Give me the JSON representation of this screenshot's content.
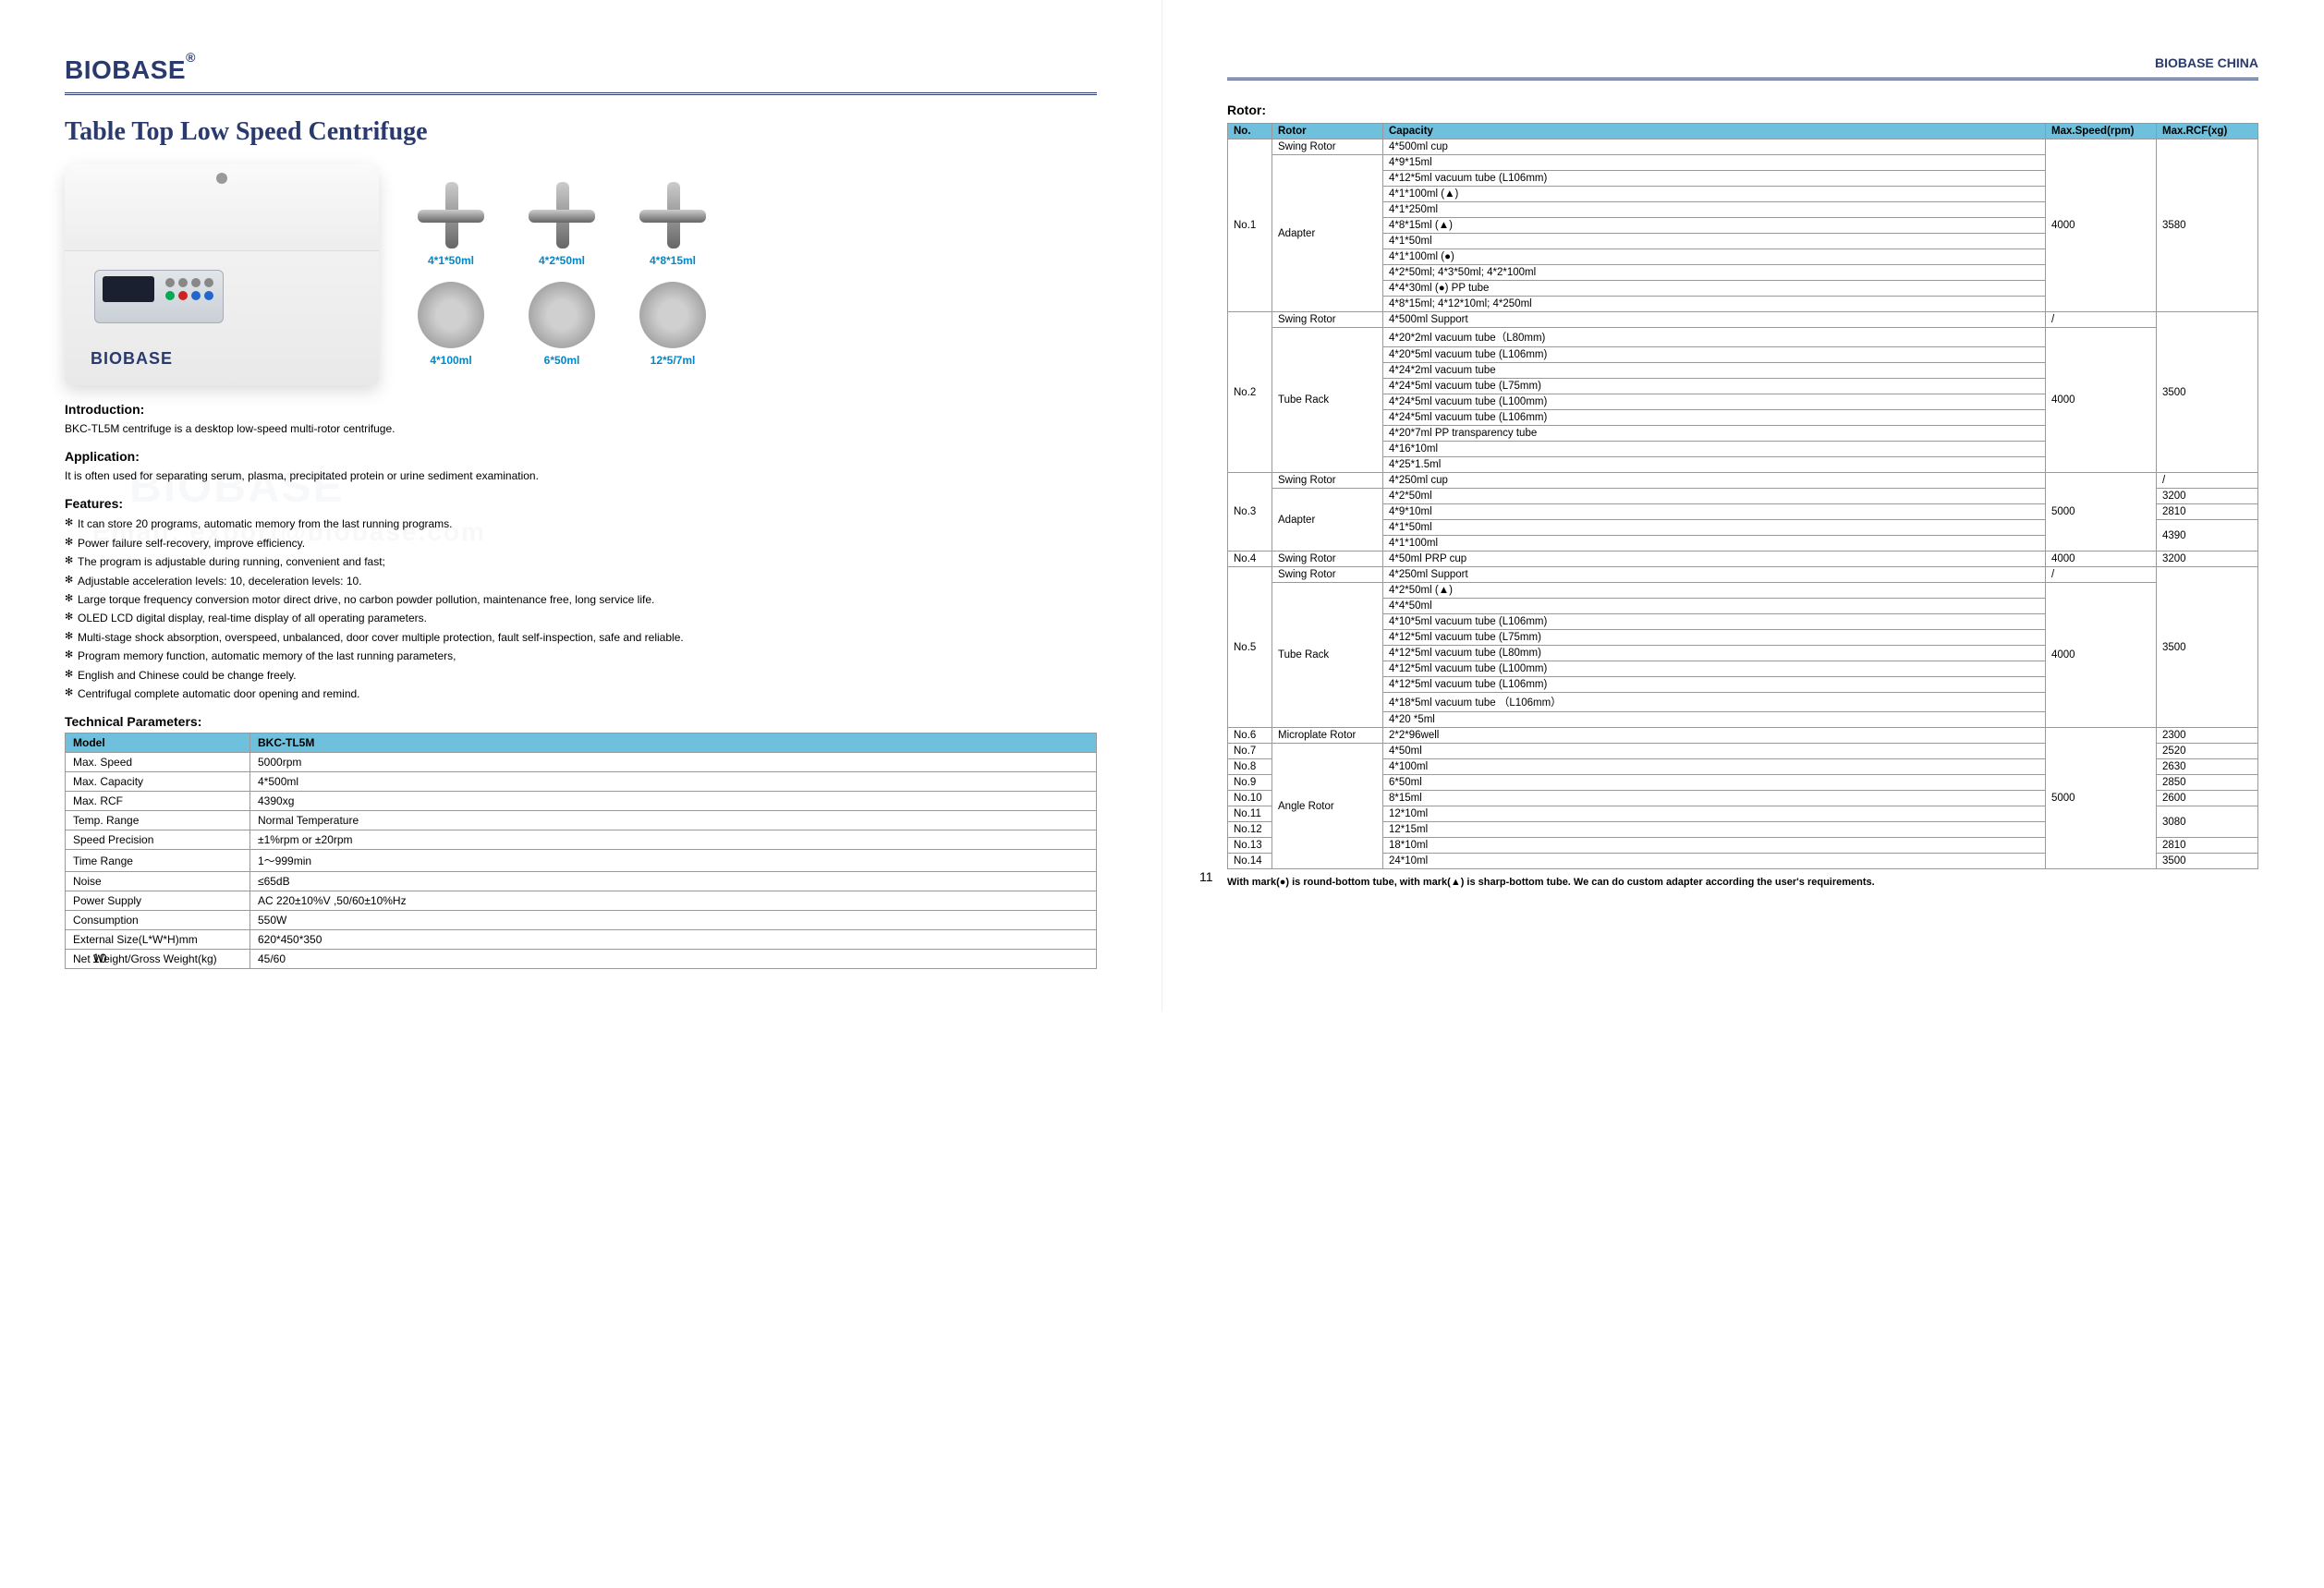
{
  "brand": {
    "logo": "BIOBASE",
    "reg": "®",
    "right_header": "BIOBASE CHINA"
  },
  "title": "Table Top Low Speed Centrifuge",
  "device_logo": "BIOBASE",
  "rotor_labels": [
    "4*1*50ml",
    "4*2*50ml",
    "4*8*15ml",
    "4*100ml",
    "6*50ml",
    "12*5/7ml"
  ],
  "intro": {
    "h": "Introduction:",
    "t": "BKC-TL5M centrifuge is a desktop low-speed multi-rotor centrifuge."
  },
  "app": {
    "h": "Application:",
    "t": "It is often used for separating serum, plasma, precipitated protein or urine sediment examination."
  },
  "features_h": "Features:",
  "features": [
    "It can store 20 programs, automatic memory from the last running programs.",
    "Power failure self-recovery, improve efficiency.",
    "The program is adjustable during running, convenient and fast;",
    "Adjustable acceleration levels: 10, deceleration levels: 10.",
    "Large torque frequency conversion motor direct drive, no carbon powder pollution, maintenance free, long service life.",
    "OLED LCD digital display, real-time display of all operating parameters.",
    "Multi-stage shock absorption, overspeed, unbalanced, door cover multiple protection, fault self-inspection, safe and reliable.",
    "Program memory function, automatic memory of the last running parameters,",
    "English and Chinese could be change freely.",
    "Centrifugal complete automatic door opening and remind."
  ],
  "tech_h": "Technical Parameters:",
  "tech_header": [
    "Model",
    "BKC-TL5M"
  ],
  "tech_rows": [
    [
      "Max. Speed",
      "5000rpm"
    ],
    [
      "Max. Capacity",
      "4*500ml"
    ],
    [
      "Max. RCF",
      "4390xg"
    ],
    [
      "Temp. Range",
      "Normal Temperature"
    ],
    [
      "Speed Precision",
      "±1%rpm or ±20rpm"
    ],
    [
      "Time Range",
      "1～999min"
    ],
    [
      "Noise",
      "≤65dB"
    ],
    [
      "Power Supply",
      "AC 220±10%V ,50/60±10%Hz"
    ],
    [
      "Consumption",
      "550W"
    ],
    [
      "External Size(L*W*H)mm",
      "620*450*350"
    ],
    [
      "Net Weight/Gross Weight(kg)",
      "45/60"
    ]
  ],
  "rotor_title": "Rotor:",
  "rotor_header": [
    "No.",
    "Rotor",
    "Capacity",
    "Max.Speed(rpm)",
    "Max.RCF(xg)"
  ],
  "rotor_rows": [
    {
      "no": "No.1",
      "no_rs": 11,
      "rotor": "Swing Rotor",
      "rotor_rs": 1,
      "cap": "4*500ml cup",
      "spd": "4000",
      "spd_rs": 11,
      "rcf": "3580",
      "rcf_rs": 11
    },
    {
      "rotor": "Adapter",
      "rotor_rs": 10,
      "cap": "4*9*15ml"
    },
    {
      "cap": "4*12*5ml vacuum tube (L106mm)"
    },
    {
      "cap": "4*1*100ml (▲)"
    },
    {
      "cap": "4*1*250ml"
    },
    {
      "cap": "4*8*15ml (▲)"
    },
    {
      "cap": "4*1*50ml"
    },
    {
      "cap": "4*1*100ml (●)"
    },
    {
      "cap": "4*2*50ml; 4*3*50ml; 4*2*100ml"
    },
    {
      "cap": "4*4*30ml (●) PP tube"
    },
    {
      "cap": "4*8*15ml; 4*12*10ml; 4*250ml"
    },
    {
      "no": "No.2",
      "no_rs": 10,
      "rotor": "Swing Rotor",
      "rotor_rs": 1,
      "cap": "4*500ml Support",
      "spd": "/",
      "spd_rs": 1,
      "rcf": "3500",
      "rcf_rs": 10
    },
    {
      "rotor": "Tube Rack",
      "rotor_rs": 9,
      "cap": "4*20*2ml vacuum tube（L80mm)",
      "spd": "4000",
      "spd_rs": 9
    },
    {
      "cap": "4*20*5ml vacuum tube (L106mm)"
    },
    {
      "cap": "4*24*2ml vacuum tube"
    },
    {
      "cap": "4*24*5ml vacuum tube (L75mm)"
    },
    {
      "cap": "4*24*5ml vacuum tube (L100mm)"
    },
    {
      "cap": "4*24*5ml vacuum tube (L106mm)"
    },
    {
      "cap": "4*20*7ml PP transparency tube"
    },
    {
      "cap": "4*16*10ml"
    },
    {
      "cap": "4*25*1.5ml"
    },
    {
      "no": "No.3",
      "no_rs": 5,
      "rotor": "Swing Rotor",
      "rotor_rs": 1,
      "cap": "4*250ml cup",
      "spd": "5000",
      "spd_rs": 5,
      "rcf": "/",
      "rcf_rs": 1
    },
    {
      "rotor": "Adapter",
      "rotor_rs": 4,
      "cap": "4*2*50ml",
      "rcf": "3200",
      "rcf_rs": 1
    },
    {
      "cap": "4*9*10ml",
      "rcf": "2810",
      "rcf_rs": 1
    },
    {
      "cap": "4*1*50ml",
      "rcf": "4390",
      "rcf_rs": 2
    },
    {
      "cap": "4*1*100ml"
    },
    {
      "no": "No.4",
      "no_rs": 1,
      "rotor": "Swing Rotor",
      "rotor_rs": 1,
      "cap": "4*50ml PRP cup",
      "spd": "4000",
      "spd_rs": 1,
      "rcf": "3200",
      "rcf_rs": 1
    },
    {
      "no": "No.5",
      "no_rs": 10,
      "rotor": "Swing Rotor",
      "rotor_rs": 1,
      "cap": "4*250ml Support",
      "spd": "/",
      "spd_rs": 1,
      "rcf": "3500",
      "rcf_rs": 10
    },
    {
      "rotor": "Tube Rack",
      "rotor_rs": 9,
      "cap": "4*2*50ml (▲)",
      "spd": "4000",
      "spd_rs": 9
    },
    {
      "cap": "4*4*50ml"
    },
    {
      "cap": "4*10*5ml vacuum tube (L106mm)"
    },
    {
      "cap": "4*12*5ml vacuum tube (L75mm)"
    },
    {
      "cap": "4*12*5ml vacuum tube (L80mm)"
    },
    {
      "cap": "4*12*5ml vacuum tube (L100mm)"
    },
    {
      "cap": "4*12*5ml vacuum tube (L106mm)"
    },
    {
      "cap": "4*18*5ml vacuum tube （L106mm）"
    },
    {
      "cap": "4*20 *5ml"
    },
    {
      "no": "No.6",
      "no_rs": 1,
      "rotor": "Microplate Rotor",
      "rotor_rs": 1,
      "cap": "2*2*96well",
      "spd": "5000",
      "spd_rs": 9,
      "rcf": "2300",
      "rcf_rs": 1
    },
    {
      "no": "No.7",
      "no_rs": 1,
      "rotor": "Angle Rotor",
      "rotor_rs": 8,
      "cap": "4*50ml",
      "rcf": "2520",
      "rcf_rs": 1
    },
    {
      "no": "No.8",
      "no_rs": 1,
      "cap": "4*100ml",
      "rcf": "2630",
      "rcf_rs": 1
    },
    {
      "no": "No.9",
      "no_rs": 1,
      "cap": "6*50ml",
      "rcf": "2850",
      "rcf_rs": 1
    },
    {
      "no": "No.10",
      "no_rs": 1,
      "cap": "8*15ml",
      "rcf": "2600",
      "rcf_rs": 1
    },
    {
      "no": "No.11",
      "no_rs": 1,
      "cap": "12*10ml",
      "rcf": "3080",
      "rcf_rs": 2
    },
    {
      "no": "No.12",
      "no_rs": 1,
      "cap": "12*15ml"
    },
    {
      "no": "No.13",
      "no_rs": 1,
      "cap": "18*10ml",
      "rcf": "2810",
      "rcf_rs": 1
    },
    {
      "no": "No.14",
      "no_rs": 1,
      "cap": "24*10ml",
      "rcf": "3500",
      "rcf_rs": 1
    }
  ],
  "footnote": "With mark(●) is round-bottom tube, with mark(▲) is sharp-bottom tube. We can do custom adapter according the user's requirements.",
  "page_left": "10",
  "page_right": "11",
  "watermark1": "BIOBASE",
  "watermark2": "Email: export@biobase.com",
  "colors": {
    "header_bg": "#6ec0dd",
    "brand": "#2a3a6d",
    "label": "#0088cc",
    "border": "#999999",
    "bg": "#ffffff"
  }
}
